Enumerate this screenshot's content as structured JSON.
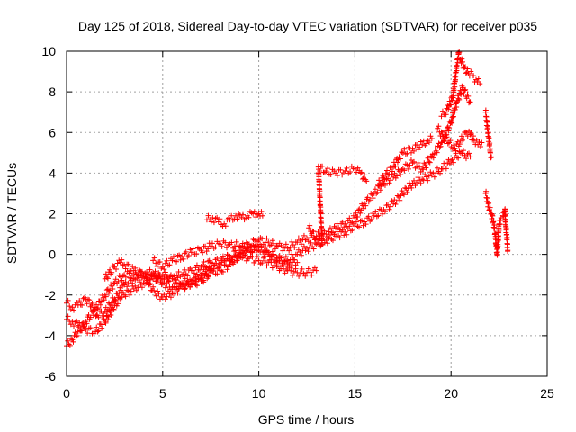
{
  "chart_data": {
    "type": "scatter",
    "title": "Day 125 of 2018, Sidereal Day-to-day VTEC variation (SDTVAR) for receiver p035",
    "xlabel": "GPS time / hours",
    "ylabel": "SDTVAR / TECUs",
    "xlim": [
      0,
      25
    ],
    "ylim": [
      -6,
      10
    ],
    "xticks": [
      0,
      5,
      10,
      15,
      20,
      25
    ],
    "yticks": [
      -6,
      -4,
      -2,
      0,
      2,
      4,
      6,
      8,
      10
    ],
    "grid": true,
    "marker": "plus",
    "color": "#ff0000",
    "series": [
      {
        "points": [
          [
            0.0,
            -4.5
          ],
          [
            0.3,
            -4.2
          ],
          [
            0.6,
            -3.8
          ],
          [
            1.0,
            -3.3
          ],
          [
            1.5,
            -2.7
          ],
          [
            2.0,
            -2.0
          ],
          [
            2.5,
            -1.4
          ],
          [
            3.0,
            -1.0
          ],
          [
            3.5,
            -1.0
          ],
          [
            4.0,
            -1.0
          ],
          [
            4.5,
            -1.1
          ],
          [
            5.0,
            -1.2
          ],
          [
            5.5,
            -1.1
          ],
          [
            6.0,
            -1.0
          ],
          [
            6.5,
            -0.8
          ],
          [
            7.0,
            -0.6
          ],
          [
            7.5,
            -0.4
          ],
          [
            8.0,
            -0.3
          ],
          [
            8.5,
            -0.1
          ],
          [
            9.0,
            0.2
          ],
          [
            9.5,
            0.5
          ],
          [
            10.0,
            0.7
          ],
          [
            10.5,
            0.6
          ],
          [
            11.0,
            0.4
          ],
          [
            11.5,
            0.3
          ],
          [
            12.0,
            0.6
          ],
          [
            12.5,
            0.8
          ],
          [
            13.0,
            0.9
          ],
          [
            13.5,
            1.0
          ],
          [
            14.0,
            1.3
          ],
          [
            14.5,
            1.5
          ],
          [
            15.0,
            1.8
          ],
          [
            15.5,
            2.5
          ],
          [
            16.0,
            3.0
          ],
          [
            16.5,
            3.5
          ],
          [
            17.0,
            3.8
          ],
          [
            17.5,
            4.2
          ],
          [
            18.0,
            4.5
          ],
          [
            18.5,
            4.2
          ],
          [
            19.0,
            4.8
          ],
          [
            19.5,
            5.5
          ],
          [
            20.0,
            6.5
          ],
          [
            20.3,
            7.5
          ],
          [
            20.6,
            8.2
          ],
          [
            21.0,
            7.5
          ]
        ]
      },
      {
        "points": [
          [
            0.0,
            -3.2
          ],
          [
            0.3,
            -3.3
          ],
          [
            0.6,
            -3.5
          ],
          [
            1.0,
            -3.7
          ],
          [
            1.5,
            -3.8
          ],
          [
            2.0,
            -3.3
          ],
          [
            2.5,
            -2.5
          ],
          [
            3.0,
            -2.0
          ],
          [
            3.5,
            -1.7
          ],
          [
            4.0,
            -1.4
          ],
          [
            4.5,
            -1.2
          ],
          [
            5.0,
            -1.0
          ],
          [
            5.5,
            -1.2
          ],
          [
            6.0,
            -1.4
          ],
          [
            6.5,
            -1.3
          ],
          [
            7.0,
            -1.0
          ],
          [
            7.5,
            -0.7
          ],
          [
            8.0,
            -0.5
          ],
          [
            8.5,
            -0.3
          ],
          [
            9.0,
            -0.1
          ],
          [
            9.5,
            0.2
          ],
          [
            10.0,
            0.4
          ],
          [
            10.5,
            0.1
          ],
          [
            11.0,
            -0.2
          ],
          [
            11.5,
            -0.3
          ],
          [
            12.0,
            0.0
          ],
          [
            12.5,
            0.3
          ],
          [
            13.0,
            0.5
          ],
          [
            13.5,
            0.7
          ],
          [
            14.0,
            0.9
          ],
          [
            14.5,
            1.1
          ],
          [
            15.0,
            1.4
          ],
          [
            15.5,
            1.6
          ],
          [
            16.0,
            1.9
          ],
          [
            16.5,
            2.2
          ],
          [
            17.0,
            2.5
          ],
          [
            17.5,
            3.0
          ],
          [
            18.0,
            3.5
          ],
          [
            18.5,
            3.7
          ],
          [
            19.0,
            3.9
          ],
          [
            19.5,
            4.2
          ],
          [
            20.0,
            4.6
          ],
          [
            20.5,
            5.0
          ],
          [
            21.0,
            4.8
          ]
        ]
      },
      {
        "points": [
          [
            0.0,
            -2.4
          ],
          [
            0.3,
            -2.6
          ],
          [
            0.6,
            -2.5
          ],
          [
            1.0,
            -2.2
          ],
          [
            1.3,
            -2.5
          ],
          [
            1.6,
            -3.0
          ],
          [
            2.0,
            -2.8
          ],
          [
            2.5,
            -2.2
          ],
          [
            3.0,
            -1.5
          ],
          [
            3.5,
            -1.2
          ],
          [
            4.0,
            -1.0
          ],
          [
            4.5,
            -0.9
          ],
          [
            5.0,
            -1.4
          ],
          [
            5.5,
            -1.6
          ],
          [
            6.0,
            -1.5
          ],
          [
            6.5,
            -1.5
          ],
          [
            7.0,
            -1.3
          ],
          [
            7.5,
            -0.9
          ],
          [
            8.0,
            -0.8
          ],
          [
            8.5,
            -0.5
          ],
          [
            9.0,
            0.0
          ],
          [
            9.5,
            -0.2
          ],
          [
            10.0,
            -0.3
          ],
          [
            10.5,
            -0.4
          ],
          [
            11.0,
            -0.6
          ],
          [
            11.5,
            -0.8
          ],
          [
            12.0,
            -0.9
          ],
          [
            12.5,
            -0.9
          ],
          [
            13.0,
            -0.8
          ]
        ]
      },
      {
        "points": [
          [
            2.0,
            -1.2
          ],
          [
            2.5,
            -0.6
          ],
          [
            2.8,
            -0.4
          ],
          [
            3.0,
            -0.5
          ],
          [
            3.5,
            -0.8
          ],
          [
            4.0,
            -1.0
          ],
          [
            4.3,
            -1.5
          ],
          [
            4.6,
            -1.9
          ],
          [
            5.0,
            -2.1
          ],
          [
            5.5,
            -1.9
          ],
          [
            6.0,
            -1.6
          ],
          [
            6.5,
            -1.4
          ],
          [
            7.0,
            -1.2
          ],
          [
            7.5,
            -0.8
          ]
        ]
      },
      {
        "points": [
          [
            4.5,
            -0.3
          ],
          [
            5.0,
            -0.6
          ],
          [
            5.5,
            -0.3
          ],
          [
            6.0,
            -0.1
          ],
          [
            6.5,
            0.1
          ],
          [
            7.0,
            0.2
          ],
          [
            7.5,
            0.4
          ],
          [
            8.0,
            0.5
          ],
          [
            8.5,
            0.5
          ],
          [
            9.0,
            0.4
          ],
          [
            9.5,
            0.3
          ],
          [
            10.0,
            0.2
          ],
          [
            10.5,
            0.0
          ],
          [
            11.0,
            -0.3
          ],
          [
            11.5,
            -0.5
          ],
          [
            12.0,
            -0.4
          ]
        ]
      },
      {
        "points": [
          [
            7.3,
            1.7
          ],
          [
            7.6,
            1.8
          ],
          [
            7.9,
            1.6
          ],
          [
            8.2,
            1.5
          ],
          [
            8.5,
            1.7
          ],
          [
            8.8,
            1.9
          ],
          [
            9.1,
            1.8
          ],
          [
            9.4,
            1.9
          ],
          [
            9.7,
            2.0
          ],
          [
            10.0,
            2.0
          ],
          [
            10.2,
            1.9
          ]
        ]
      },
      {
        "points": [
          [
            12.6,
            1.3
          ],
          [
            13.0,
            0.8
          ],
          [
            13.3,
            0.5
          ],
          [
            13.1,
            4.3
          ],
          [
            13.5,
            4.1
          ],
          [
            14.0,
            4.0
          ],
          [
            14.5,
            4.1
          ],
          [
            15.0,
            4.2
          ],
          [
            15.3,
            4.0
          ],
          [
            15.6,
            3.6
          ]
        ]
      },
      {
        "points": [
          [
            16.2,
            3.4
          ],
          [
            16.5,
            3.8
          ],
          [
            17.0,
            4.3
          ],
          [
            17.3,
            4.8
          ],
          [
            17.5,
            5.0
          ],
          [
            18.0,
            5.2
          ],
          [
            18.5,
            5.4
          ],
          [
            18.8,
            5.6
          ],
          [
            19.0,
            5.7
          ]
        ]
      },
      {
        "points": [
          [
            19.5,
            6.8
          ],
          [
            19.7,
            7.0
          ],
          [
            19.9,
            7.3
          ],
          [
            20.1,
            7.8
          ],
          [
            20.2,
            8.5
          ],
          [
            20.3,
            9.3
          ],
          [
            20.4,
            9.9
          ],
          [
            20.5,
            9.6
          ],
          [
            20.7,
            9.2
          ],
          [
            20.9,
            8.9
          ],
          [
            21.1,
            8.8
          ],
          [
            21.3,
            8.6
          ],
          [
            21.5,
            8.4
          ]
        ]
      },
      {
        "points": [
          [
            19.3,
            6.2
          ],
          [
            19.6,
            5.8
          ],
          [
            19.9,
            5.5
          ],
          [
            20.2,
            5.2
          ],
          [
            20.5,
            5.6
          ],
          [
            20.8,
            6.0
          ],
          [
            21.0,
            5.9
          ],
          [
            21.2,
            5.6
          ],
          [
            21.4,
            5.4
          ],
          [
            21.6,
            5.5
          ]
        ]
      },
      {
        "points": [
          [
            21.8,
            7.0
          ],
          [
            21.85,
            6.6
          ],
          [
            21.9,
            6.2
          ],
          [
            21.95,
            5.8
          ],
          [
            22.0,
            5.4
          ],
          [
            22.05,
            5.0
          ],
          [
            22.1,
            4.8
          ]
        ]
      },
      {
        "points": [
          [
            21.8,
            3.0
          ],
          [
            21.9,
            2.6
          ],
          [
            22.0,
            2.2
          ],
          [
            22.1,
            2.0
          ],
          [
            22.2,
            1.6
          ],
          [
            22.3,
            1.0
          ],
          [
            22.35,
            0.4
          ],
          [
            22.4,
            0.0
          ],
          [
            22.5,
            1.5
          ],
          [
            22.6,
            1.8
          ],
          [
            22.7,
            1.9
          ],
          [
            22.8,
            2.2
          ],
          [
            22.85,
            1.4
          ],
          [
            22.9,
            0.8
          ],
          [
            22.95,
            0.2
          ]
        ]
      }
    ]
  }
}
